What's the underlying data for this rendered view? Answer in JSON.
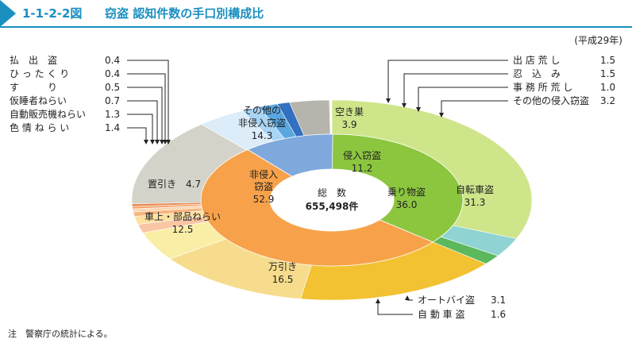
{
  "header": {
    "figure_id": "1-1-2-2図",
    "title": "窃盗 認知件数の手口別構成比"
  },
  "year_label": "(平成29年)",
  "note": "注　警察庁の統計による。",
  "chart_data": {
    "type": "pie",
    "center": {
      "title": "総　数",
      "value": "655,498件"
    },
    "inner": [
      {
        "name": "乗り物盗",
        "value": 36.0,
        "color": "#8cc63f"
      },
      {
        "name": "非侵入窃盗",
        "value": 52.9,
        "color": "#f7a24a"
      },
      {
        "name": "侵入窃盗",
        "value": 11.2,
        "color": "#7fa8dc"
      }
    ],
    "outer": [
      {
        "name": "自転車盗",
        "value": 31.3,
        "color": "#cfe58a"
      },
      {
        "name": "オートバイ盗",
        "value": 3.1,
        "color": "#8fd3d3"
      },
      {
        "name": "自 動 車 盗",
        "value": 1.6,
        "color": "#5cb85c"
      },
      {
        "name": "万引き",
        "value": 16.5,
        "color": "#f2c232"
      },
      {
        "name": "車上・部品ねらい",
        "value": 12.5,
        "color": "#f6dc8c"
      },
      {
        "name": "置引き",
        "value": 4.7,
        "color": "#faeea6"
      },
      {
        "name": "色 情 ね ら い",
        "value": 1.4,
        "color": "#f9c6a4"
      },
      {
        "name": "自動販売機ねらい",
        "value": 1.3,
        "color": "#fde0a0"
      },
      {
        "name": "仮睡者ねらい",
        "value": 0.7,
        "color": "#f7b57a"
      },
      {
        "name": "す　　　り",
        "value": 0.5,
        "color": "#fbd4b0"
      },
      {
        "name": "ひ っ た く り",
        "value": 0.4,
        "color": "#f3a56c"
      },
      {
        "name": "払　出　盗",
        "value": 0.4,
        "color": "#e8874d"
      },
      {
        "name": "その他の非侵入窃盗",
        "value": 14.3,
        "color": "#d3d3c9"
      },
      {
        "name": "空き巣",
        "value": 3.9,
        "color": "#dcecf9"
      },
      {
        "name": "出 店 荒 し",
        "value": 1.5,
        "color": "#a9d4f3"
      },
      {
        "name": "忍　込　み",
        "value": 1.5,
        "color": "#5aa7e0"
      },
      {
        "name": "事 務 所 荒 し",
        "value": 1.0,
        "color": "#3470c0"
      },
      {
        "name": "その他の侵入窃盗",
        "value": 3.2,
        "color": "#b5b5ae"
      }
    ]
  }
}
